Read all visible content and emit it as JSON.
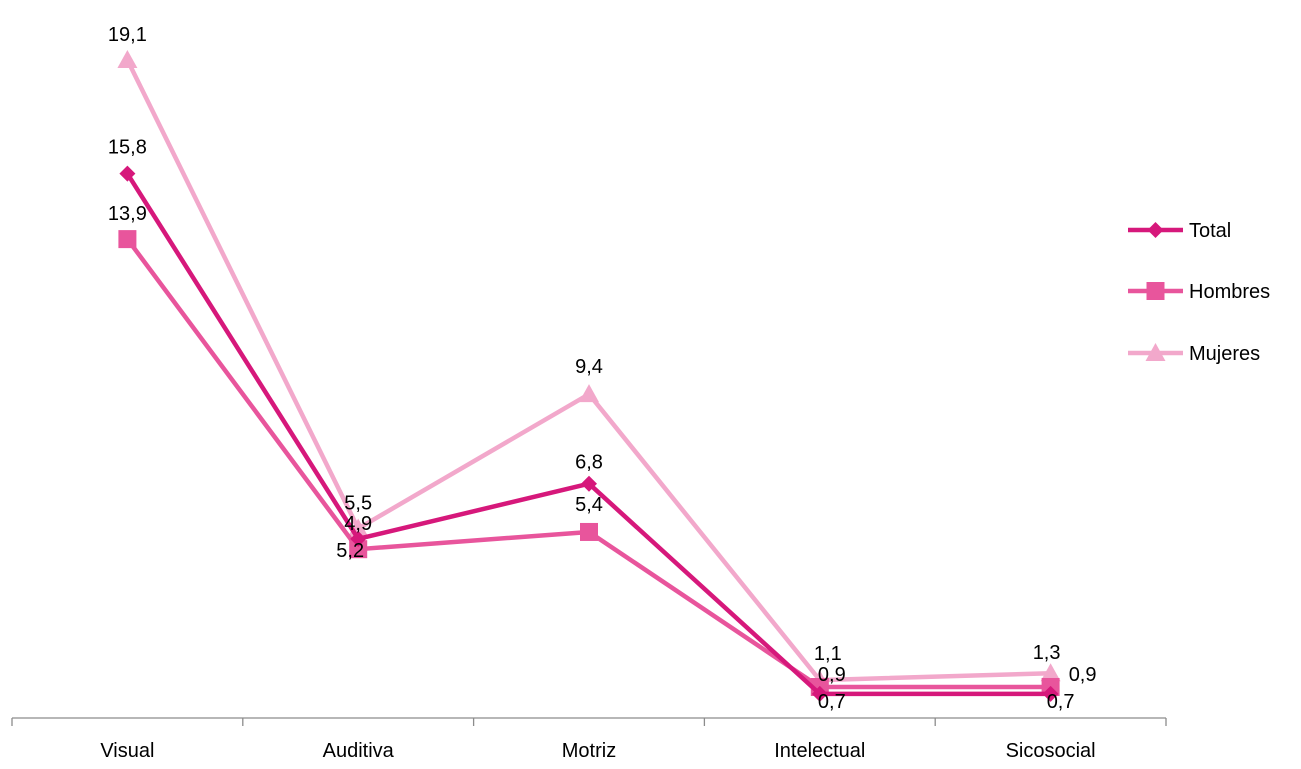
{
  "chart_data": {
    "type": "line",
    "categories": [
      "Visual",
      "Auditiva",
      "Motriz",
      "Intelectual",
      "Sicosocial"
    ],
    "series": [
      {
        "name": "Total",
        "values": [
          15.8,
          5.2,
          6.8,
          0.7,
          0.7
        ],
        "labels": [
          "15,8",
          "5,2",
          "6,8",
          "0,7",
          "0,7"
        ],
        "color": "#d6187b",
        "marker": "diamond"
      },
      {
        "name": "Hombres",
        "values": [
          13.9,
          4.9,
          5.4,
          0.9,
          0.9
        ],
        "labels": [
          "13,9",
          "4,9",
          "5,4",
          "0,9",
          "0,9"
        ],
        "color": "#e8559c",
        "marker": "square"
      },
      {
        "name": "Mujeres",
        "values": [
          19.1,
          5.5,
          9.4,
          1.1,
          1.3
        ],
        "labels": [
          "19,1",
          "5,5",
          "9,4",
          "1,1",
          "1,3"
        ],
        "color": "#f2a8cb",
        "marker": "triangle"
      }
    ],
    "legend_position": "right",
    "grid": false,
    "title": "",
    "xlabel": "",
    "ylabel": ""
  }
}
